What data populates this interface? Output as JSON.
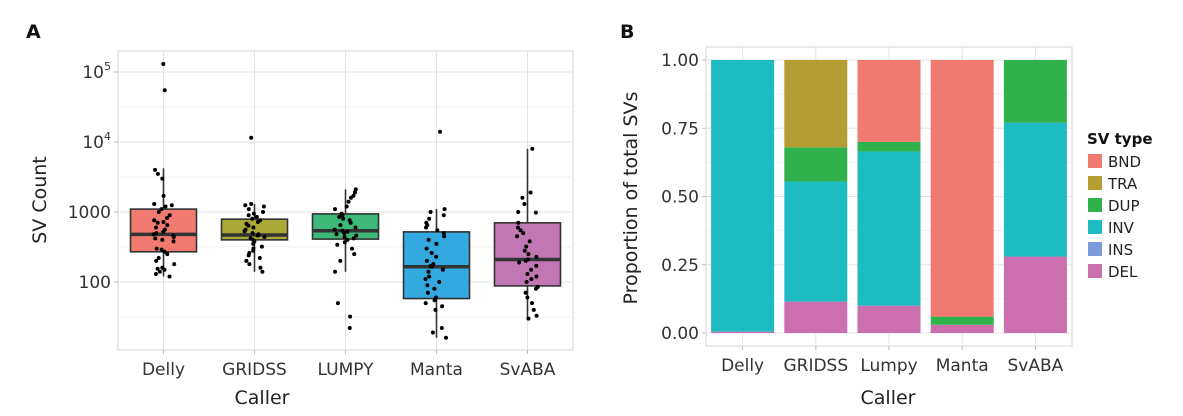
{
  "chart_data": [
    {
      "panel": "A",
      "type": "box",
      "title": "",
      "xlabel": "Caller",
      "ylabel": "SV Count",
      "yscale": "log10",
      "ylim": [
        14,
        200000
      ],
      "yticks": [
        100,
        1000,
        10000,
        100000
      ],
      "ytick_labels": [
        {
          "base": "100",
          "exp": ""
        },
        {
          "base": "1000",
          "exp": ""
        },
        {
          "base": "10",
          "exp": "4"
        },
        {
          "base": "10",
          "exp": "5"
        }
      ],
      "grid": true,
      "categories": [
        "Delly",
        "GRIDSS",
        "LUMPY",
        "Manta",
        "SvABA"
      ],
      "colors": [
        "#F07A70",
        "#A9A935",
        "#3CB878",
        "#33A9E0",
        "#C277B5"
      ],
      "boxes": [
        {
          "name": "Delly",
          "q1": 270,
          "median": 480,
          "q3": 1100,
          "whisker_low": 120,
          "whisker_high": 4200,
          "points": [
            130000,
            55000,
            4000,
            3500,
            3000,
            1700,
            1300,
            1250,
            1200,
            1100,
            1000,
            900,
            820,
            760,
            720,
            700,
            650,
            600,
            560,
            520,
            500,
            480,
            460,
            440,
            420,
            400,
            380,
            300,
            290,
            270,
            250,
            220,
            200,
            180,
            160,
            155,
            150,
            140,
            130,
            120
          ]
        },
        {
          "name": "GRIDSS",
          "q1": 400,
          "median": 470,
          "q3": 790,
          "whisker_low": 140,
          "whisker_high": 1300,
          "points": [
            11500,
            1300,
            1250,
            1200,
            1100,
            1000,
            950,
            900,
            850,
            800,
            760,
            720,
            680,
            640,
            600,
            560,
            530,
            500,
            480,
            460,
            440,
            420,
            400,
            380,
            350,
            320,
            300,
            280,
            260,
            240,
            220,
            200,
            180,
            160,
            140
          ]
        },
        {
          "name": "LUMPY",
          "q1": 410,
          "median": 540,
          "q3": 940,
          "whisker_low": 140,
          "whisker_high": 2100,
          "points": [
            2100,
            1900,
            1700,
            1600,
            1400,
            1200,
            1100,
            950,
            900,
            850,
            800,
            760,
            700,
            650,
            600,
            560,
            540,
            520,
            500,
            480,
            460,
            440,
            420,
            400,
            370,
            340,
            300,
            250,
            200,
            140,
            50,
            32,
            22
          ]
        },
        {
          "name": "Manta",
          "q1": 58,
          "median": 165,
          "q3": 520,
          "whisker_low": 16,
          "whisker_high": 1100,
          "points": [
            14000,
            1100,
            1000,
            900,
            800,
            700,
            650,
            600,
            550,
            500,
            450,
            400,
            350,
            300,
            260,
            230,
            200,
            180,
            170,
            165,
            150,
            140,
            120,
            110,
            100,
            90,
            80,
            70,
            60,
            55,
            50,
            45,
            40,
            22,
            19,
            16
          ]
        },
        {
          "name": "SvABA",
          "q1": 88,
          "median": 210,
          "q3": 700,
          "whisker_low": 30,
          "whisker_high": 8000,
          "points": [
            8000,
            1900,
            1600,
            1300,
            1000,
            980,
            700,
            600,
            550,
            500,
            450,
            380,
            320,
            280,
            250,
            230,
            210,
            200,
            190,
            170,
            150,
            130,
            120,
            110,
            100,
            85,
            80,
            70,
            60,
            50,
            40,
            33,
            30
          ]
        }
      ]
    },
    {
      "panel": "B",
      "type": "stacked-bar",
      "title": "",
      "xlabel": "Caller",
      "ylabel": "Proportion of total SVs",
      "ylim": [
        0,
        1
      ],
      "yticks": [
        0.0,
        0.25,
        0.5,
        0.75,
        1.0
      ],
      "ytick_labels": [
        "0.00",
        "0.25",
        "0.50",
        "0.75",
        "1.00"
      ],
      "grid": true,
      "categories": [
        "Delly",
        "GRIDSS",
        "Lumpy",
        "Manta",
        "SvABA"
      ],
      "legend": {
        "title": "SV type",
        "position": "right"
      },
      "series": [
        {
          "name": "BND",
          "color": "#F07A70",
          "values": [
            0.0,
            0.0,
            0.3,
            0.94,
            0.0
          ]
        },
        {
          "name": "TRA",
          "color": "#B59D33",
          "values": [
            0.0,
            0.32,
            0.0,
            0.0,
            0.0
          ]
        },
        {
          "name": "DUP",
          "color": "#2FB24C",
          "values": [
            0.0,
            0.125,
            0.035,
            0.03,
            0.23
          ]
        },
        {
          "name": "INV",
          "color": "#1FBBC2",
          "values": [
            0.995,
            0.44,
            0.565,
            0.0,
            0.49
          ]
        },
        {
          "name": "INS",
          "color": "#7B9AD8",
          "values": [
            0.0,
            0.0,
            0.0,
            0.0,
            0.0
          ]
        },
        {
          "name": "DEL",
          "color": "#CB6FAF",
          "values": [
            0.005,
            0.115,
            0.1,
            0.03,
            0.28
          ]
        }
      ]
    }
  ]
}
